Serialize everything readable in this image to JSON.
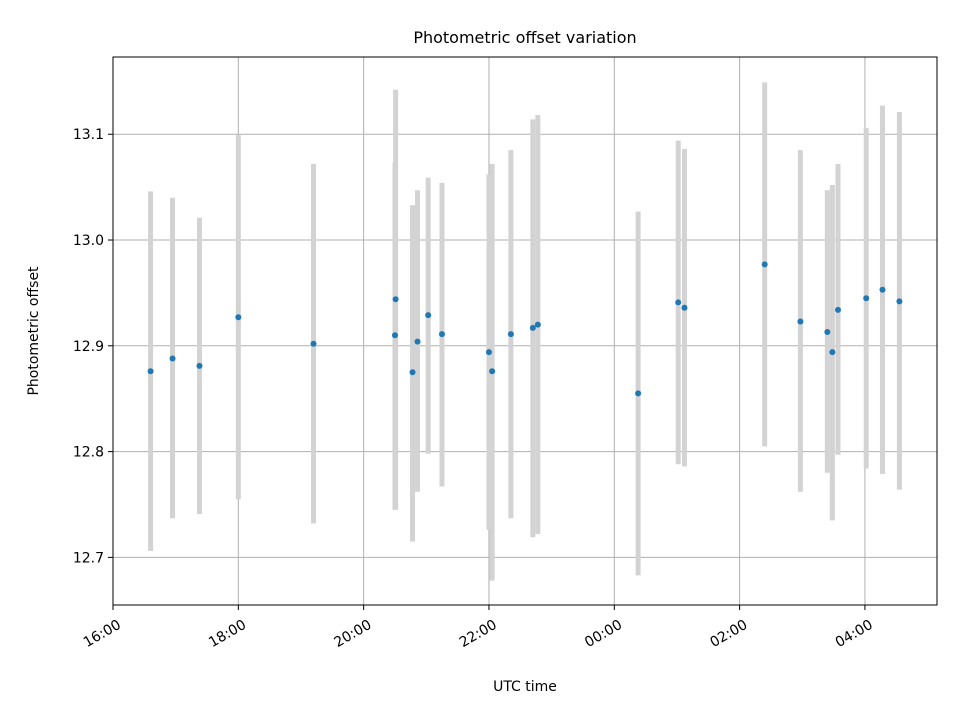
{
  "chart_data": {
    "type": "scatter",
    "title": "Photometric offset variation",
    "xlabel": "UTC time",
    "ylabel": "Photometric offset",
    "x_unit": "hours since 16:00 UTC",
    "xlim": [
      0.0,
      13.15
    ],
    "ylim": [
      12.655,
      13.173
    ],
    "x_ticks": [
      {
        "value": 0,
        "label": "16:00"
      },
      {
        "value": 2,
        "label": "18:00"
      },
      {
        "value": 4,
        "label": "20:00"
      },
      {
        "value": 6,
        "label": "22:00"
      },
      {
        "value": 8,
        "label": "00:00"
      },
      {
        "value": 10,
        "label": "02:00"
      },
      {
        "value": 12,
        "label": "04:00"
      }
    ],
    "y_ticks": [
      {
        "value": 12.7,
        "label": "12.7"
      },
      {
        "value": 12.8,
        "label": "12.8"
      },
      {
        "value": 12.9,
        "label": "12.9"
      },
      {
        "value": 13.0,
        "label": "13.0"
      },
      {
        "value": 13.1,
        "label": "13.1"
      }
    ],
    "grid": true,
    "marker_color": "#1f77b4",
    "errorbar_color": "#d3d3d3",
    "points": [
      {
        "x": 0.6,
        "y": 12.876,
        "low": 12.706,
        "high": 13.046
      },
      {
        "x": 0.95,
        "y": 12.888,
        "low": 12.737,
        "high": 13.04
      },
      {
        "x": 1.38,
        "y": 12.881,
        "low": 12.741,
        "high": 13.021
      },
      {
        "x": 2.0,
        "y": 12.927,
        "low": 12.755,
        "high": 13.099
      },
      {
        "x": 3.2,
        "y": 12.902,
        "low": 12.732,
        "high": 13.072
      },
      {
        "x": 4.5,
        "y": 12.91,
        "low": 12.745,
        "high": 13.073
      },
      {
        "x": 4.51,
        "y": 12.944,
        "low": 12.745,
        "high": 13.142
      },
      {
        "x": 4.78,
        "y": 12.875,
        "low": 12.715,
        "high": 13.033
      },
      {
        "x": 4.86,
        "y": 12.904,
        "low": 12.762,
        "high": 13.047
      },
      {
        "x": 5.03,
        "y": 12.929,
        "low": 12.798,
        "high": 13.059
      },
      {
        "x": 5.25,
        "y": 12.911,
        "low": 12.767,
        "high": 13.054
      },
      {
        "x": 6.0,
        "y": 12.894,
        "low": 12.726,
        "high": 13.062
      },
      {
        "x": 6.05,
        "y": 12.876,
        "low": 12.678,
        "high": 13.072
      },
      {
        "x": 6.35,
        "y": 12.911,
        "low": 12.737,
        "high": 13.085
      },
      {
        "x": 6.7,
        "y": 12.917,
        "low": 12.719,
        "high": 13.114
      },
      {
        "x": 6.78,
        "y": 12.92,
        "low": 12.722,
        "high": 13.118
      },
      {
        "x": 8.38,
        "y": 12.855,
        "low": 12.683,
        "high": 13.027
      },
      {
        "x": 9.02,
        "y": 12.941,
        "low": 12.788,
        "high": 13.094
      },
      {
        "x": 9.12,
        "y": 12.936,
        "low": 12.786,
        "high": 13.086
      },
      {
        "x": 10.4,
        "y": 12.977,
        "low": 12.805,
        "high": 13.149
      },
      {
        "x": 10.97,
        "y": 12.923,
        "low": 12.762,
        "high": 13.085
      },
      {
        "x": 11.4,
        "y": 12.913,
        "low": 12.78,
        "high": 13.047
      },
      {
        "x": 11.48,
        "y": 12.894,
        "low": 12.735,
        "high": 13.052
      },
      {
        "x": 11.57,
        "y": 12.934,
        "low": 12.797,
        "high": 13.072
      },
      {
        "x": 12.02,
        "y": 12.945,
        "low": 12.784,
        "high": 13.106
      },
      {
        "x": 12.28,
        "y": 12.953,
        "low": 12.779,
        "high": 13.127
      },
      {
        "x": 12.55,
        "y": 12.942,
        "low": 12.764,
        "high": 13.121
      }
    ]
  }
}
